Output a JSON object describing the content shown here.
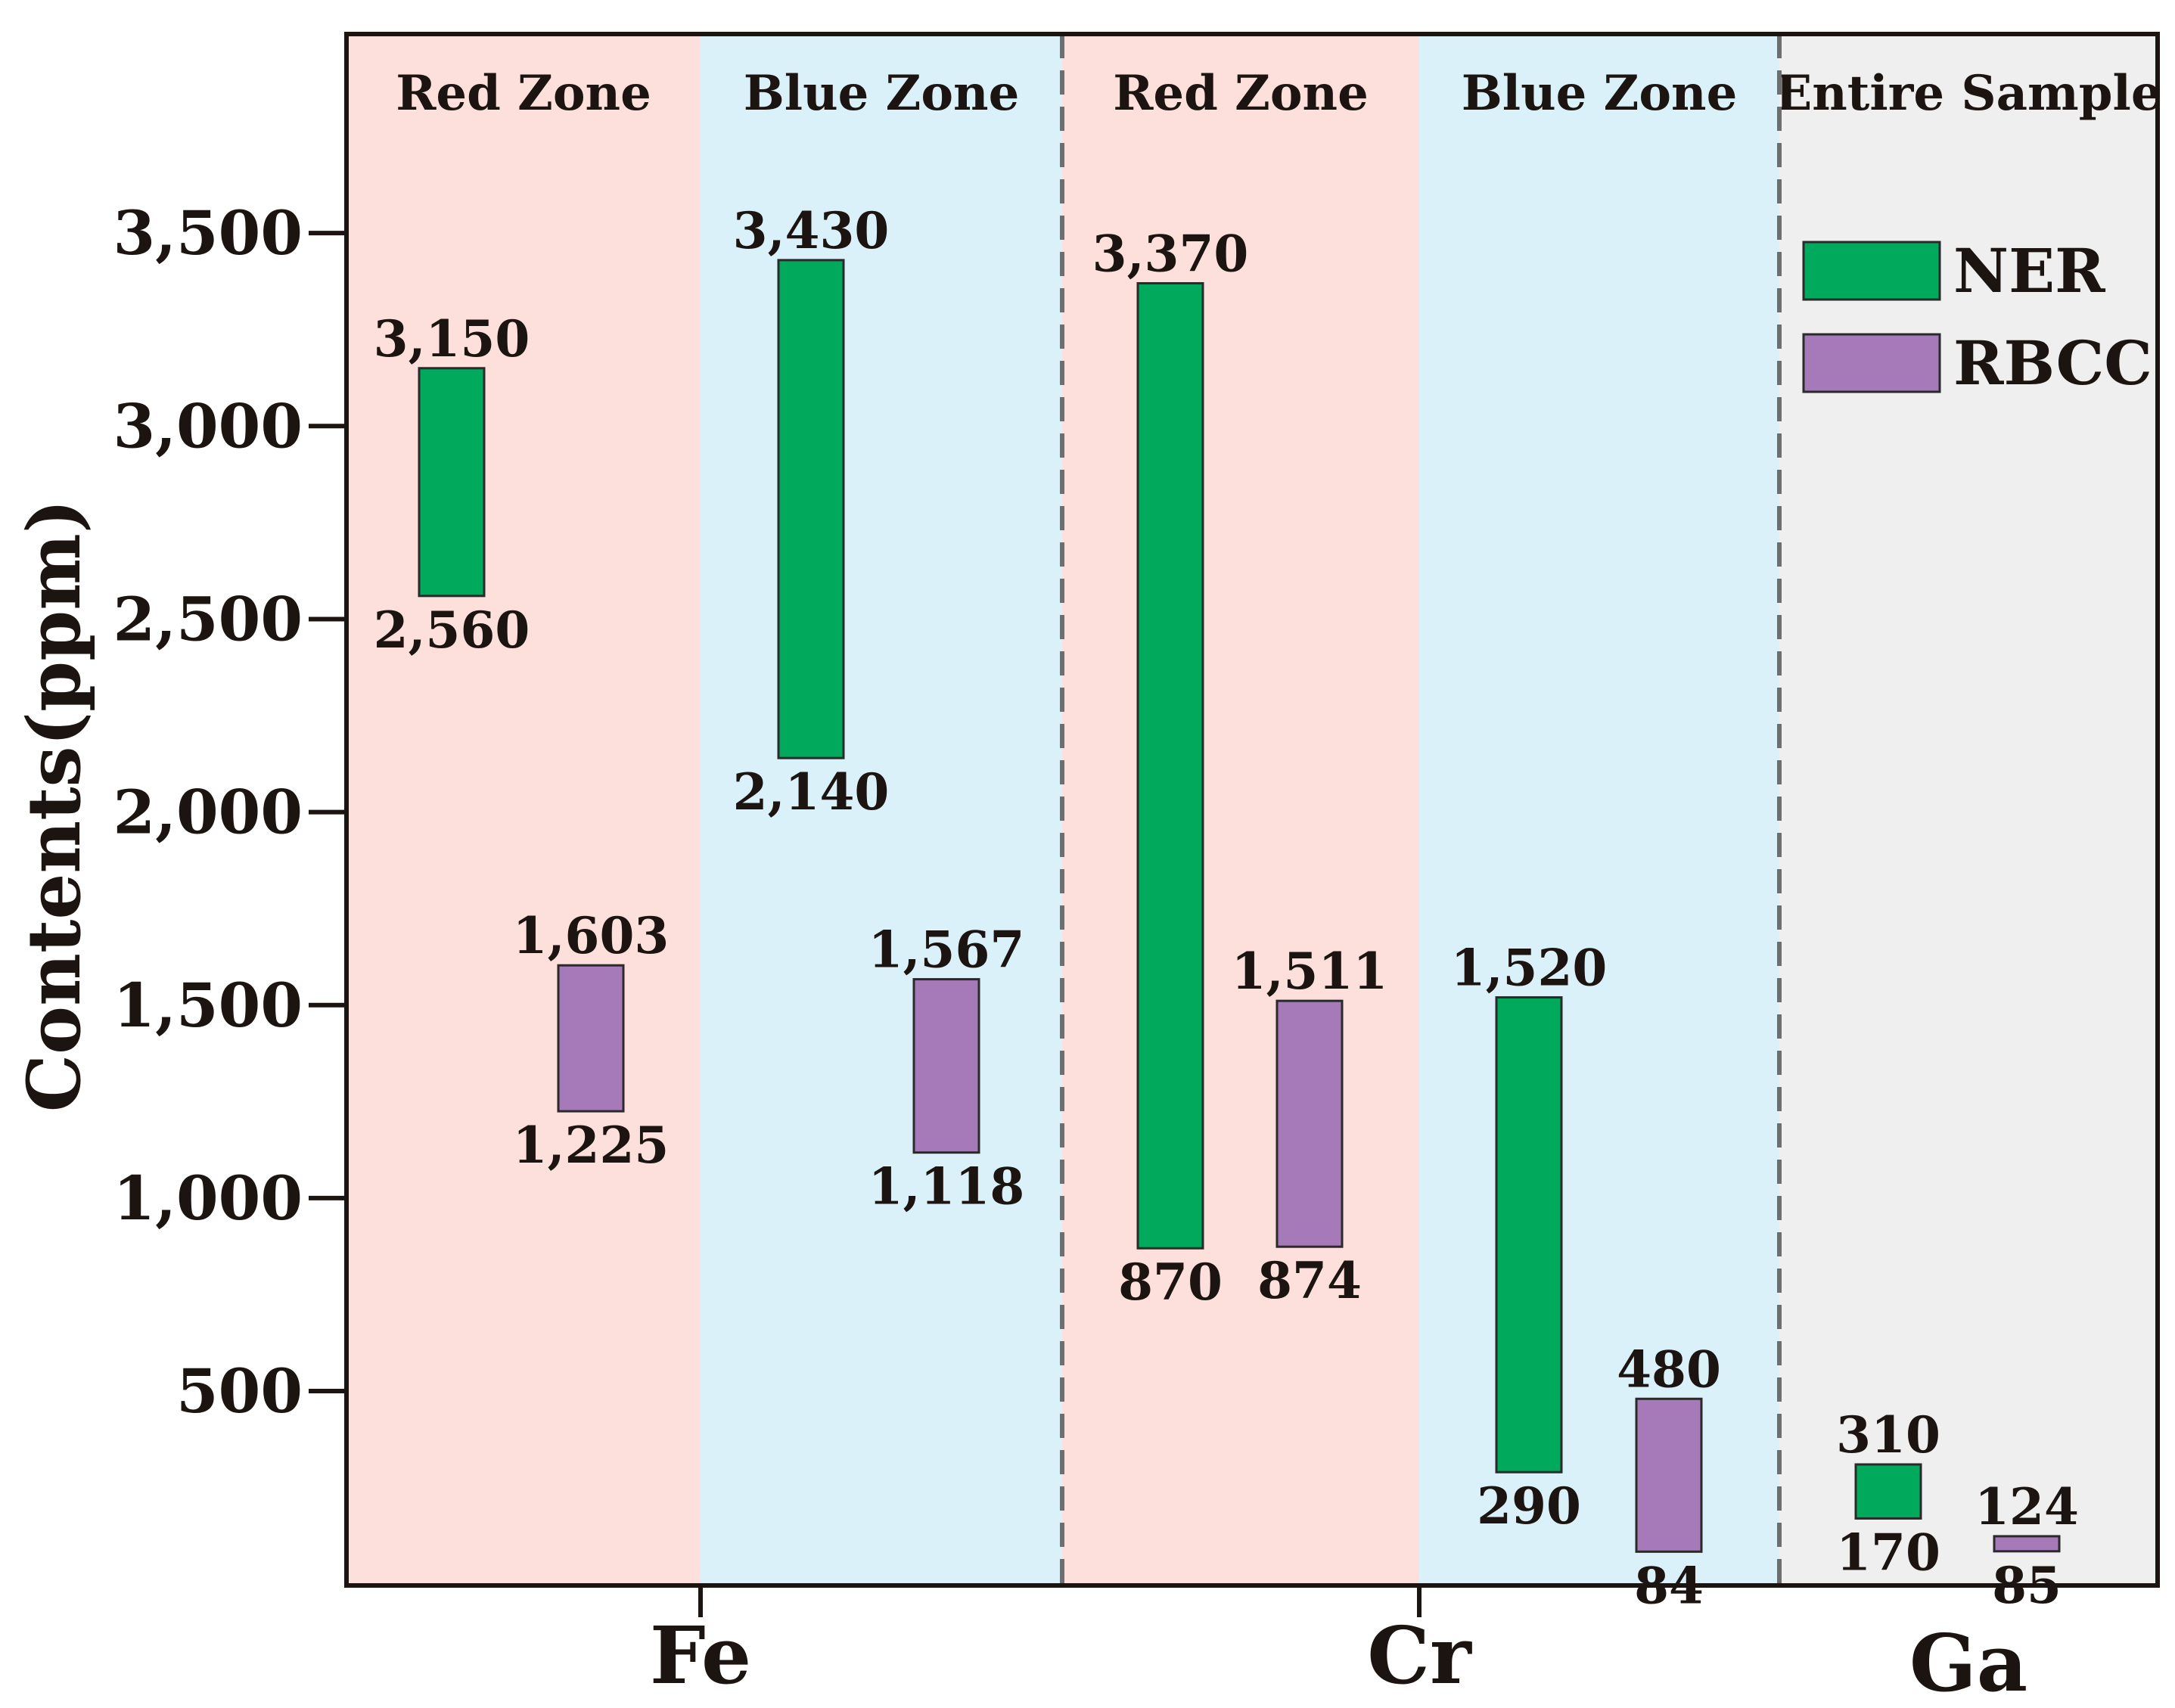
{
  "chart_data": {
    "type": "floating-bar",
    "title": "",
    "ylabel": "Contents(ppm)",
    "xlabel": "",
    "ylim": [
      0,
      4000
    ],
    "yticks": [
      500,
      1000,
      1500,
      2000,
      2500,
      3000,
      3500
    ],
    "ytick_labels": [
      "500",
      "1,000",
      "1,500",
      "2,000",
      "2,500",
      "3,000",
      "3,500"
    ],
    "elements": [
      "Fe",
      "Cr",
      "Ga"
    ],
    "zones": [
      {
        "label": "Red Zone",
        "element": "Fe",
        "color": "#fde0dc"
      },
      {
        "label": "Blue Zone",
        "element": "Fe",
        "color": "#dbf1f9"
      },
      {
        "label": "Red Zone",
        "element": "Cr",
        "color": "#fde0dc"
      },
      {
        "label": "Blue Zone",
        "element": "Cr",
        "color": "#dbf1f9"
      },
      {
        "label": "Entire Sample",
        "element": "Ga",
        "color": "#efefef"
      }
    ],
    "series": [
      {
        "name": "NER",
        "color": "#00a95c",
        "ranges": [
          {
            "zone": 0,
            "low": 2560,
            "high": 3150,
            "low_label": "2,560",
            "high_label": "3,150"
          },
          {
            "zone": 1,
            "low": 2140,
            "high": 3430,
            "low_label": "2,140",
            "high_label": "3,430"
          },
          {
            "zone": 2,
            "low": 870,
            "high": 3370,
            "low_label": "870",
            "high_label": "3,370"
          },
          {
            "zone": 3,
            "low": 290,
            "high": 1520,
            "low_label": "290",
            "high_label": "1,520"
          },
          {
            "zone": 4,
            "low": 170,
            "high": 310,
            "low_label": "170",
            "high_label": "310"
          }
        ]
      },
      {
        "name": "RBCC",
        "color": "#a67ab8",
        "ranges": [
          {
            "zone": 0,
            "low": 1225,
            "high": 1603,
            "low_label": "1,225",
            "high_label": "1,603"
          },
          {
            "zone": 1,
            "low": 1118,
            "high": 1567,
            "low_label": "1,118",
            "high_label": "1,567"
          },
          {
            "zone": 2,
            "low": 874,
            "high": 1511,
            "low_label": "874",
            "high_label": "1,511"
          },
          {
            "zone": 3,
            "low": 84,
            "high": 480,
            "low_label": "84",
            "high_label": "480"
          },
          {
            "zone": 4,
            "low": 85,
            "high": 124,
            "low_label": "85",
            "high_label": "124"
          }
        ]
      }
    ],
    "legend": {
      "position": "top-right",
      "entries": [
        "NER",
        "RBCC"
      ]
    }
  }
}
